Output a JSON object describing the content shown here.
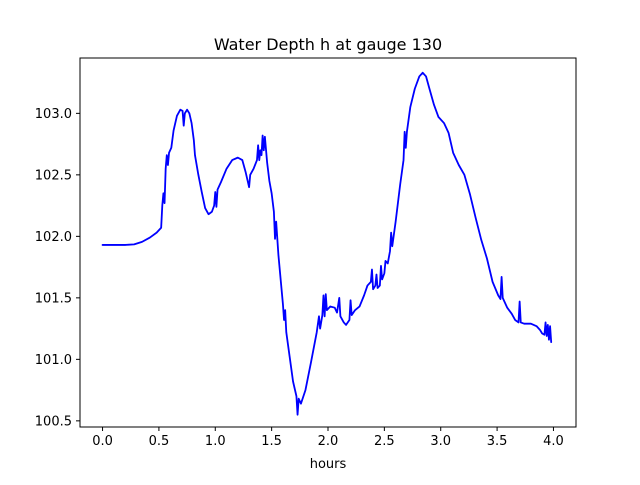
{
  "chart_data": {
    "type": "line",
    "title": "Water Depth h at gauge 130",
    "xlabel": "hours",
    "ylabel": "",
    "xlim": [
      -0.2,
      4.2
    ],
    "ylim": [
      100.45,
      103.45
    ],
    "xticks": [
      {
        "value": 0.0,
        "label": "0.0"
      },
      {
        "value": 0.5,
        "label": "0.5"
      },
      {
        "value": 1.0,
        "label": "1.0"
      },
      {
        "value": 1.5,
        "label": "1.5"
      },
      {
        "value": 2.0,
        "label": "2.0"
      },
      {
        "value": 2.5,
        "label": "2.5"
      },
      {
        "value": 3.0,
        "label": "3.0"
      },
      {
        "value": 3.5,
        "label": "3.5"
      },
      {
        "value": 4.0,
        "label": "4.0"
      }
    ],
    "yticks": [
      {
        "value": 100.5,
        "label": "100.5"
      },
      {
        "value": 101.0,
        "label": "101.0"
      },
      {
        "value": 101.5,
        "label": "101.5"
      },
      {
        "value": 102.0,
        "label": "102.0"
      },
      {
        "value": 102.5,
        "label": "102.5"
      },
      {
        "value": 103.0,
        "label": "103.0"
      }
    ],
    "grid": false,
    "legend": "none",
    "series": [
      {
        "color": "#0000ff",
        "points": [
          [
            0.0,
            101.93
          ],
          [
            0.1,
            101.93
          ],
          [
            0.2,
            101.93
          ],
          [
            0.28,
            101.935
          ],
          [
            0.35,
            101.955
          ],
          [
            0.42,
            101.99
          ],
          [
            0.48,
            102.03
          ],
          [
            0.52,
            102.07
          ],
          [
            0.53,
            102.25
          ],
          [
            0.54,
            102.35
          ],
          [
            0.55,
            102.27
          ],
          [
            0.56,
            102.55
          ],
          [
            0.57,
            102.66
          ],
          [
            0.58,
            102.58
          ],
          [
            0.59,
            102.68
          ],
          [
            0.61,
            102.72
          ],
          [
            0.63,
            102.86
          ],
          [
            0.66,
            102.98
          ],
          [
            0.69,
            103.03
          ],
          [
            0.71,
            103.02
          ],
          [
            0.72,
            102.9
          ],
          [
            0.73,
            103.0
          ],
          [
            0.75,
            103.03
          ],
          [
            0.77,
            103.0
          ],
          [
            0.79,
            102.92
          ],
          [
            0.81,
            102.78
          ],
          [
            0.82,
            102.66
          ],
          [
            0.85,
            102.5
          ],
          [
            0.88,
            102.36
          ],
          [
            0.91,
            102.23
          ],
          [
            0.94,
            102.18
          ],
          [
            0.97,
            102.2
          ],
          [
            0.99,
            102.25
          ],
          [
            1.0,
            102.36
          ],
          [
            1.01,
            102.24
          ],
          [
            1.02,
            102.38
          ],
          [
            1.05,
            102.44
          ],
          [
            1.1,
            102.55
          ],
          [
            1.15,
            102.62
          ],
          [
            1.2,
            102.64
          ],
          [
            1.24,
            102.62
          ],
          [
            1.27,
            102.52
          ],
          [
            1.29,
            102.44
          ],
          [
            1.3,
            102.4
          ],
          [
            1.31,
            102.5
          ],
          [
            1.34,
            102.55
          ],
          [
            1.37,
            102.62
          ],
          [
            1.38,
            102.74
          ],
          [
            1.39,
            102.62
          ],
          [
            1.4,
            102.7
          ],
          [
            1.41,
            102.66
          ],
          [
            1.42,
            102.82
          ],
          [
            1.43,
            102.7
          ],
          [
            1.44,
            102.81
          ],
          [
            1.46,
            102.6
          ],
          [
            1.48,
            102.45
          ],
          [
            1.5,
            102.35
          ],
          [
            1.52,
            102.2
          ],
          [
            1.53,
            101.98
          ],
          [
            1.54,
            102.12
          ],
          [
            1.56,
            101.85
          ],
          [
            1.58,
            101.65
          ],
          [
            1.6,
            101.45
          ],
          [
            1.61,
            101.32
          ],
          [
            1.62,
            101.4
          ],
          [
            1.63,
            101.22
          ],
          [
            1.66,
            101.02
          ],
          [
            1.69,
            100.82
          ],
          [
            1.72,
            100.7
          ],
          [
            1.73,
            100.55
          ],
          [
            1.74,
            100.68
          ],
          [
            1.76,
            100.64
          ],
          [
            1.8,
            100.75
          ],
          [
            1.85,
            100.98
          ],
          [
            1.9,
            101.22
          ],
          [
            1.92,
            101.35
          ],
          [
            1.93,
            101.25
          ],
          [
            1.95,
            101.36
          ],
          [
            1.96,
            101.52
          ],
          [
            1.97,
            101.35
          ],
          [
            1.98,
            101.53
          ],
          [
            1.99,
            101.4
          ],
          [
            2.02,
            101.43
          ],
          [
            2.06,
            101.42
          ],
          [
            2.08,
            101.38
          ],
          [
            2.1,
            101.5
          ],
          [
            2.11,
            101.35
          ],
          [
            2.14,
            101.3
          ],
          [
            2.16,
            101.28
          ],
          [
            2.19,
            101.32
          ],
          [
            2.2,
            101.48
          ],
          [
            2.21,
            101.36
          ],
          [
            2.24,
            101.4
          ],
          [
            2.28,
            101.43
          ],
          [
            2.32,
            101.52
          ],
          [
            2.35,
            101.6
          ],
          [
            2.38,
            101.63
          ],
          [
            2.39,
            101.73
          ],
          [
            2.4,
            101.57
          ],
          [
            2.42,
            101.6
          ],
          [
            2.43,
            101.69
          ],
          [
            2.44,
            101.58
          ],
          [
            2.46,
            101.6
          ],
          [
            2.47,
            101.76
          ],
          [
            2.48,
            101.65
          ],
          [
            2.5,
            101.7
          ],
          [
            2.51,
            101.8
          ],
          [
            2.53,
            101.78
          ],
          [
            2.55,
            101.88
          ],
          [
            2.56,
            102.03
          ],
          [
            2.57,
            101.92
          ],
          [
            2.6,
            102.12
          ],
          [
            2.64,
            102.42
          ],
          [
            2.67,
            102.62
          ],
          [
            2.68,
            102.85
          ],
          [
            2.69,
            102.72
          ],
          [
            2.7,
            102.85
          ],
          [
            2.73,
            103.05
          ],
          [
            2.77,
            103.2
          ],
          [
            2.81,
            103.3
          ],
          [
            2.84,
            103.33
          ],
          [
            2.87,
            103.3
          ],
          [
            2.9,
            103.2
          ],
          [
            2.94,
            103.07
          ],
          [
            2.98,
            102.97
          ],
          [
            3.03,
            102.92
          ],
          [
            3.07,
            102.84
          ],
          [
            3.11,
            102.68
          ],
          [
            3.16,
            102.58
          ],
          [
            3.21,
            102.5
          ],
          [
            3.26,
            102.34
          ],
          [
            3.31,
            102.15
          ],
          [
            3.36,
            101.97
          ],
          [
            3.41,
            101.82
          ],
          [
            3.46,
            101.63
          ],
          [
            3.51,
            101.52
          ],
          [
            3.53,
            101.49
          ],
          [
            3.54,
            101.67
          ],
          [
            3.55,
            101.5
          ],
          [
            3.59,
            101.42
          ],
          [
            3.63,
            101.37
          ],
          [
            3.66,
            101.32
          ],
          [
            3.69,
            101.3
          ],
          [
            3.7,
            101.47
          ],
          [
            3.71,
            101.3
          ],
          [
            3.74,
            101.29
          ],
          [
            3.8,
            101.29
          ],
          [
            3.85,
            101.27
          ],
          [
            3.88,
            101.24
          ],
          [
            3.9,
            101.21
          ],
          [
            3.92,
            101.2
          ],
          [
            3.93,
            101.3
          ],
          [
            3.94,
            101.19
          ],
          [
            3.95,
            101.28
          ],
          [
            3.96,
            101.16
          ],
          [
            3.97,
            101.27
          ],
          [
            3.98,
            101.14
          ]
        ]
      }
    ]
  }
}
